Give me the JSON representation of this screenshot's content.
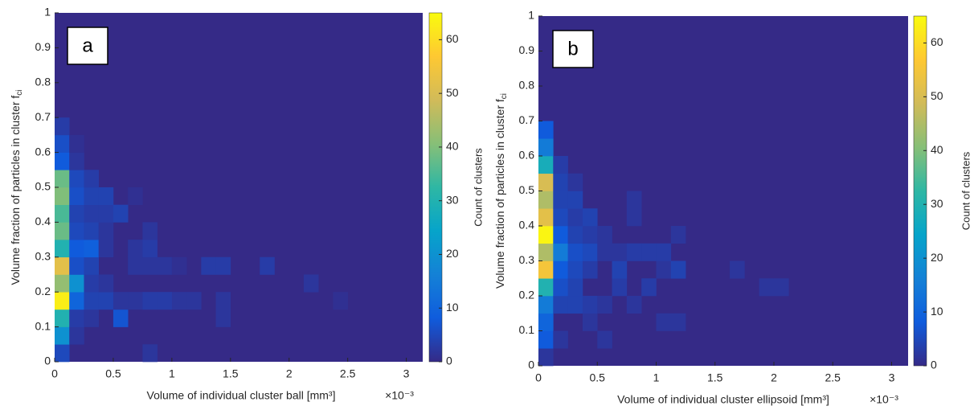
{
  "chart_data": [
    {
      "type": "heatmap",
      "panel_label": "a",
      "xlabel": "Volume of individual cluster ball [mm³]",
      "x_multiplier": "×10⁻³",
      "ylabel": "Volume fraction of particles in cluster f",
      "ylabel_sub": "ci",
      "colorbar_label": "Count of clusters",
      "colormap": "parula",
      "xlim": [
        0,
        3.14
      ],
      "ylim": [
        0,
        1
      ],
      "xticks": [
        0,
        0.5,
        1,
        1.5,
        2,
        2.5,
        3
      ],
      "yticks": [
        0,
        0.1,
        0.2,
        0.3,
        0.4,
        0.5,
        0.6,
        0.7,
        0.8,
        0.9,
        1
      ],
      "clim": [
        0,
        65
      ],
      "cticks": [
        0,
        10,
        20,
        30,
        40,
        50,
        60
      ],
      "xbins": [
        0,
        0.125,
        0.25,
        0.375,
        0.5,
        0.625,
        0.75,
        0.875,
        1,
        1.125,
        1.25,
        1.375,
        1.5,
        1.625,
        1.75,
        1.875,
        2,
        2.125,
        2.25,
        2.375,
        2.5,
        2.625,
        2.75,
        2.875,
        3,
        3.125
      ],
      "ybins": [
        0,
        0.05,
        0.1,
        0.15,
        0.2,
        0.25,
        0.3,
        0.35,
        0.4,
        0.45,
        0.5,
        0.55,
        0.6,
        0.65,
        0.7,
        0.75,
        0.8,
        0.85,
        0.9,
        0.95,
        1
      ],
      "x": [
        0,
        0,
        0,
        0,
        0,
        0,
        0,
        0,
        0,
        0,
        0,
        0,
        0,
        0,
        0.125,
        0.125,
        0.125,
        0.125,
        0.125,
        0.125,
        0.125,
        0.125,
        0.125,
        0.125,
        0.125,
        0.125,
        0.25,
        0.25,
        0.25,
        0.25,
        0.25,
        0.25,
        0.25,
        0.25,
        0.25,
        0.375,
        0.375,
        0.375,
        0.375,
        0.375,
        0.375,
        0.5,
        0.5,
        0.5,
        0.625,
        0.625,
        0.625,
        0.625,
        0.75,
        0.75,
        0.75,
        0.75,
        0.75,
        0.875,
        0.875,
        1,
        1,
        1.125,
        1.25,
        1.375,
        1.375,
        1.375,
        1.75,
        2.125,
        2.375
      ],
      "y": [
        0,
        0.05,
        0.1,
        0.15,
        0.2,
        0.25,
        0.3,
        0.35,
        0.4,
        0.45,
        0.5,
        0.55,
        0.6,
        0.65,
        0.05,
        0.1,
        0.15,
        0.2,
        0.25,
        0.3,
        0.35,
        0.4,
        0.45,
        0.5,
        0.55,
        0.6,
        0.1,
        0.15,
        0.2,
        0.25,
        0.3,
        0.35,
        0.4,
        0.45,
        0.5,
        0.15,
        0.2,
        0.3,
        0.35,
        0.4,
        0.45,
        0.1,
        0.15,
        0.4,
        0.15,
        0.25,
        0.3,
        0.45,
        0,
        0.15,
        0.25,
        0.3,
        0.35,
        0.15,
        0.25,
        0.15,
        0.25,
        0.15,
        0.25,
        0.1,
        0.15,
        0.25,
        0.25,
        0.2,
        0.15
      ],
      "values": [
        5,
        20,
        30,
        63,
        42,
        52,
        30,
        38,
        35,
        40,
        38,
        8,
        6,
        3,
        2,
        3,
        10,
        20,
        6,
        8,
        5,
        4,
        6,
        5,
        2,
        1,
        2,
        4,
        3,
        4,
        9,
        4,
        3,
        4,
        3,
        4,
        2,
        2,
        2,
        3,
        4,
        7,
        2,
        4,
        2,
        2,
        2,
        1,
        2,
        3,
        2,
        3,
        2,
        3,
        2,
        2,
        1,
        2,
        3,
        2,
        2,
        3,
        3,
        2,
        1
      ]
    },
    {
      "type": "heatmap",
      "panel_label": "b",
      "xlabel": "Volume of individual cluster ellipsoid [mm³]",
      "x_multiplier": "×10⁻³",
      "ylabel": "Volume fraction of particles in cluster f",
      "ylabel_sub": "ci",
      "colorbar_label": "Count of clusters",
      "colormap": "parula",
      "xlim": [
        0,
        3.14
      ],
      "ylim": [
        0,
        1
      ],
      "xticks": [
        0,
        0.5,
        1,
        1.5,
        2,
        2.5,
        3
      ],
      "yticks": [
        0,
        0.1,
        0.2,
        0.3,
        0.4,
        0.5,
        0.6,
        0.7,
        0.8,
        0.9,
        1
      ],
      "clim": [
        0,
        65
      ],
      "cticks": [
        0,
        10,
        20,
        30,
        40,
        50,
        60
      ],
      "xbins": [
        0,
        0.125,
        0.25,
        0.375,
        0.5,
        0.625,
        0.75,
        0.875,
        1,
        1.125,
        1.25,
        1.375,
        1.5,
        1.625,
        1.75,
        1.875,
        2,
        2.125,
        2.25,
        2.375,
        2.5,
        2.625,
        2.75,
        2.875,
        3,
        3.125
      ],
      "ybins": [
        0,
        0.05,
        0.1,
        0.15,
        0.2,
        0.25,
        0.3,
        0.35,
        0.4,
        0.45,
        0.5,
        0.55,
        0.6,
        0.65,
        0.7,
        0.75,
        0.8,
        0.85,
        0.9,
        0.95,
        1
      ],
      "x": [
        0,
        0,
        0,
        0,
        0,
        0,
        0,
        0,
        0,
        0,
        0,
        0,
        0,
        0,
        0.125,
        0.125,
        0.125,
        0.125,
        0.125,
        0.125,
        0.125,
        0.125,
        0.125,
        0.125,
        0.25,
        0.25,
        0.25,
        0.25,
        0.25,
        0.25,
        0.25,
        0.25,
        0.375,
        0.375,
        0.375,
        0.375,
        0.375,
        0.375,
        0.5,
        0.5,
        0.5,
        0.5,
        0.625,
        0.625,
        0.625,
        0.75,
        0.75,
        0.75,
        0.75,
        0.875,
        0.875,
        1,
        1,
        1,
        1.125,
        1.125,
        1.125,
        1.625,
        1.875,
        2
      ],
      "y": [
        0,
        0.05,
        0.1,
        0.15,
        0.2,
        0.25,
        0.3,
        0.35,
        0.4,
        0.45,
        0.5,
        0.55,
        0.6,
        0.65,
        0.05,
        0.15,
        0.2,
        0.25,
        0.3,
        0.35,
        0.4,
        0.45,
        0.5,
        0.55,
        0.15,
        0.2,
        0.25,
        0.3,
        0.35,
        0.4,
        0.45,
        0.5,
        0.1,
        0.15,
        0.25,
        0.3,
        0.35,
        0.4,
        0.05,
        0.15,
        0.3,
        0.35,
        0.2,
        0.25,
        0.3,
        0.15,
        0.3,
        0.4,
        0.45,
        0.2,
        0.3,
        0.1,
        0.25,
        0.3,
        0.1,
        0.25,
        0.35,
        0.25,
        0.2,
        0.2
      ],
      "values": [
        2,
        8,
        10,
        15,
        30,
        55,
        45,
        64,
        52,
        45,
        50,
        28,
        15,
        8,
        2,
        4,
        6,
        8,
        15,
        8,
        5,
        4,
        4,
        3,
        4,
        4,
        5,
        6,
        4,
        3,
        4,
        2,
        2,
        3,
        3,
        5,
        3,
        4,
        2,
        2,
        2,
        2,
        3,
        4,
        2,
        2,
        3,
        2,
        2,
        3,
        3,
        2,
        2,
        3,
        2,
        4,
        2,
        2,
        2,
        2
      ]
    }
  ]
}
